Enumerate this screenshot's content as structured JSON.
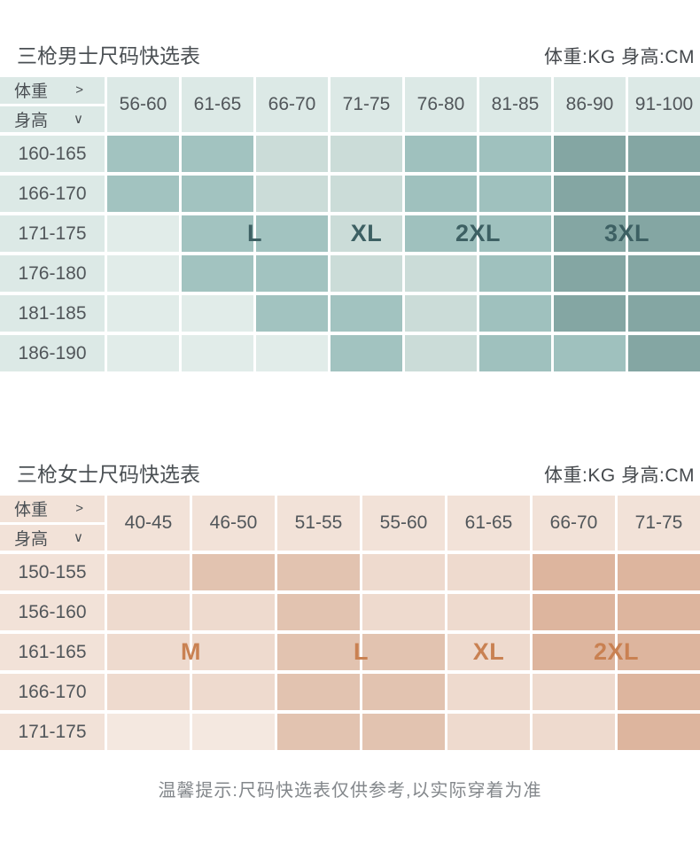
{
  "page": {
    "footnote": "温馨提示:尺码快选表仅供参考,以实际穿着为准"
  },
  "chart_data": [
    {
      "type": "heatmap",
      "title": "三枪男士尺码快选表",
      "unit_legend": "体重:KG 身高:CM",
      "xlabel": "体重 (KG)",
      "ylabel": "身高 (CM)",
      "corner": {
        "weight_label": "体重",
        "weight_arrow": ">",
        "height_label": "身高",
        "height_arrow": "∨"
      },
      "columns": [
        "56-60",
        "61-65",
        "66-70",
        "71-75",
        "76-80",
        "81-85",
        "86-90",
        "91-100"
      ],
      "rows": [
        "160-165",
        "166-170",
        "171-175",
        "176-180",
        "181-185",
        "186-190"
      ],
      "cells": [
        [
          "L",
          "L",
          "XL",
          "XL",
          "2XL",
          "2XL",
          "3XL",
          "3XL"
        ],
        [
          "L",
          "L",
          "XL",
          "XL",
          "2XL",
          "2XL",
          "3XL",
          "3XL"
        ],
        [
          "-",
          "L",
          "L",
          "XL",
          "2XL",
          "2XL",
          "3XL",
          "3XL"
        ],
        [
          "-",
          "L",
          "L",
          "XL",
          "XL",
          "2XL",
          "3XL",
          "3XL"
        ],
        [
          "-",
          "-",
          "L",
          "L",
          "XL",
          "2XL",
          "3XL",
          "3XL"
        ],
        [
          "-",
          "-",
          "-",
          "L",
          "XL",
          "2XL",
          "2XL",
          "3XL"
        ]
      ],
      "size_labels": [
        {
          "text": "L",
          "row": 2,
          "span_start": 1,
          "span_end": 2
        },
        {
          "text": "XL",
          "row": 2,
          "span_start": 3,
          "span_end": 3
        },
        {
          "text": "2XL",
          "row": 2,
          "span_start": 4,
          "span_end": 5
        },
        {
          "text": "3XL",
          "row": 2,
          "span_start": 6,
          "span_end": 7
        }
      ],
      "colors": {
        "header_bg": "#dce9e6",
        "size_label": "#3d6063",
        "bands": {
          "-": "#e1ece9",
          "L": "#a2c3c0",
          "XL": "#cbdcd8",
          "2XL": "#9fc1be",
          "3XL": "#84a6a3"
        }
      }
    },
    {
      "type": "heatmap",
      "title": "三枪女士尺码快选表",
      "unit_legend": "体重:KG 身高:CM",
      "xlabel": "体重 (KG)",
      "ylabel": "身高 (CM)",
      "corner": {
        "weight_label": "体重",
        "weight_arrow": ">",
        "height_label": "身高",
        "height_arrow": "∨"
      },
      "columns": [
        "40-45",
        "46-50",
        "51-55",
        "55-60",
        "61-65",
        "66-70",
        "71-75"
      ],
      "rows": [
        "150-155",
        "156-160",
        "161-165",
        "166-170",
        "171-175"
      ],
      "cells": [
        [
          "M",
          "L",
          "L",
          "XL",
          "XL",
          "2XL",
          "2XL"
        ],
        [
          "M",
          "M",
          "L",
          "XL",
          "XL",
          "2XL",
          "2XL"
        ],
        [
          "M",
          "M",
          "L",
          "L",
          "XL",
          "2XL",
          "2XL"
        ],
        [
          "M",
          "M",
          "L",
          "L",
          "XL",
          "XL",
          "2XL"
        ],
        [
          "-",
          "-",
          "L",
          "L",
          "XL",
          "XL",
          "2XL"
        ]
      ],
      "size_labels": [
        {
          "text": "M",
          "row": 2,
          "span_start": 0,
          "span_end": 1
        },
        {
          "text": "L",
          "row": 2,
          "span_start": 2,
          "span_end": 3
        },
        {
          "text": "XL",
          "row": 2,
          "span_start": 4,
          "span_end": 4
        },
        {
          "text": "2XL",
          "row": 2,
          "span_start": 5,
          "span_end": 6
        }
      ],
      "colors": {
        "header_bg": "#f2e2d8",
        "size_label": "#c98152",
        "bands": {
          "-": "#f4e8e0",
          "M": "#eedace",
          "L": "#e2c3b0",
          "XL": "#eedace",
          "2XL": "#ddb59e"
        }
      }
    }
  ]
}
